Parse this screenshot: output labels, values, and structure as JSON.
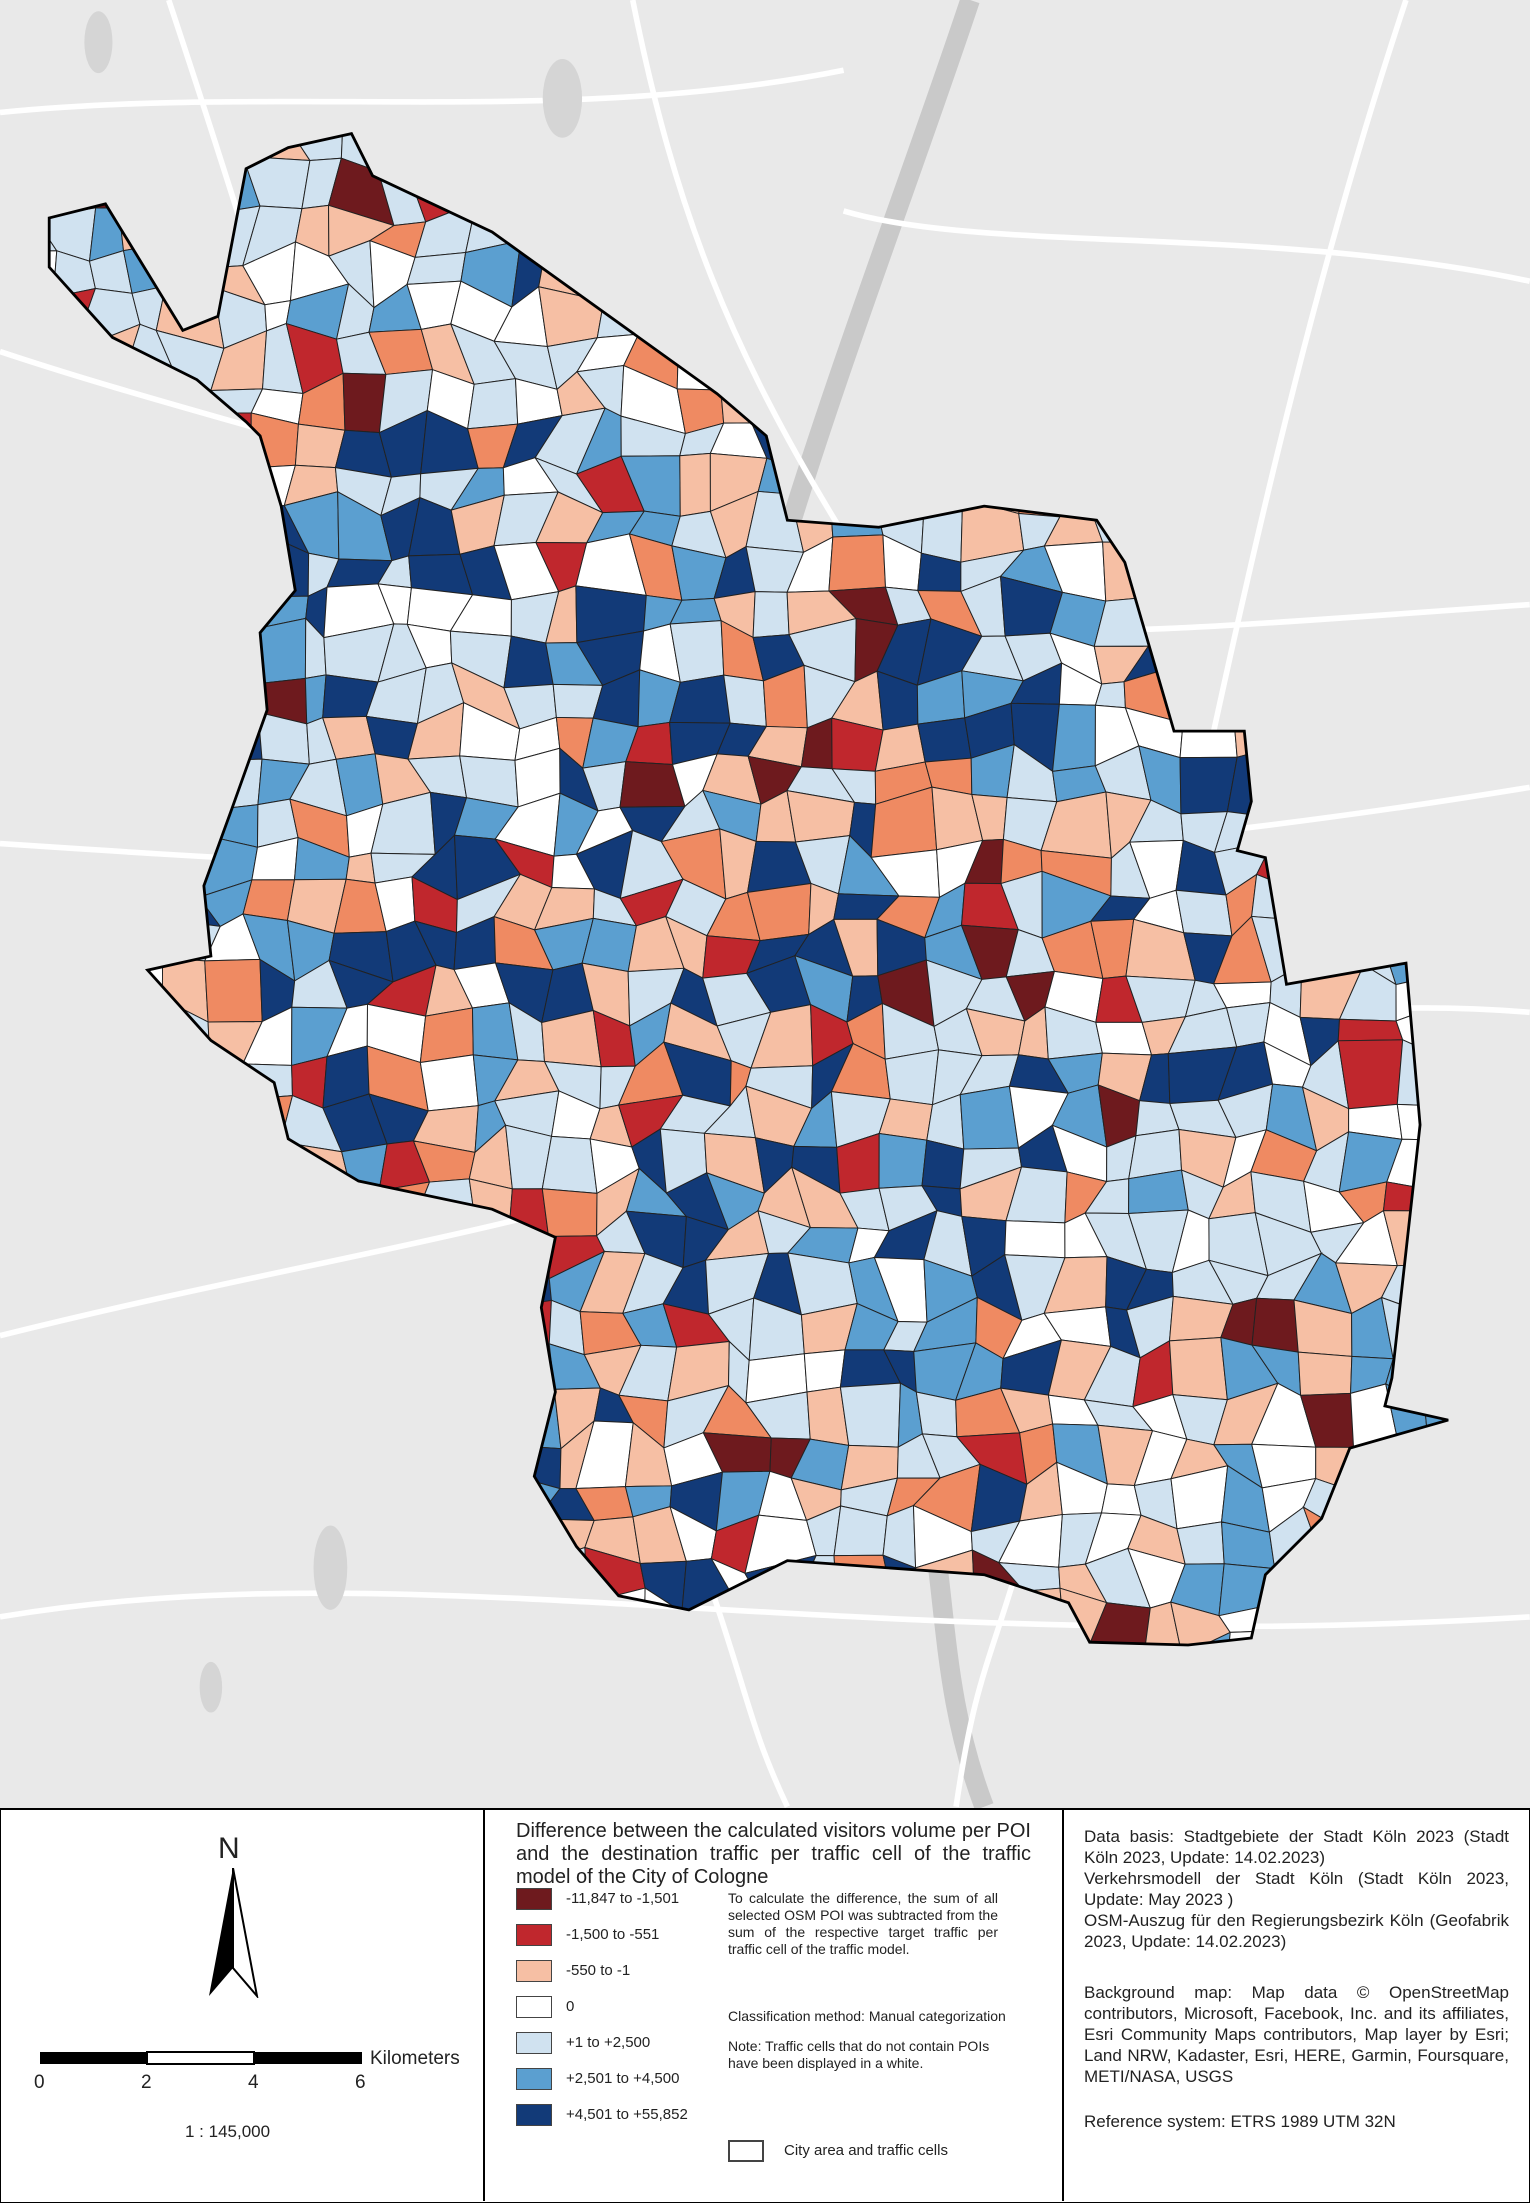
{
  "north_arrow": "N",
  "scale_bar": {
    "ticks": [
      "0",
      "2",
      "4",
      "6"
    ],
    "unit": "Kilometers",
    "ratio": "1 : 145,000"
  },
  "legend": {
    "title": "Difference between the calculated visitors volume per POI and the destination traffic per traffic cell of the traffic model of the City of Cologne",
    "classes": [
      {
        "label": "-11,847 to -1,501",
        "color": "#6e1a1e"
      },
      {
        "label": "-1,500 to -551",
        "color": "#c0272d"
      },
      {
        "label": "-550 to -1",
        "color": "#f6bfa4"
      },
      {
        "label": "0",
        "color": "#ffffff"
      },
      {
        "label": "+1 to +2,500",
        "color": "#d0e2f0"
      },
      {
        "label": "+2,501 to +4,500",
        "color": "#5b9fd0"
      },
      {
        "label": "+4,501 to +55,852",
        "color": "#123a78"
      }
    ],
    "outline_label": "City area and traffic cells",
    "method_note": "To calculate the difference, the sum of all selected OSM POI was subtracted from the sum of the respective target traffic per traffic cell of the traffic model.",
    "classification": "Classification method: Manual categorization",
    "white_note": "Note: Traffic cells that do not contain POIs have been displayed in a white."
  },
  "sources": {
    "data_basis": [
      "Data basis: Stadtgebiete der Stadt Köln 2023 (Stadt Köln 2023, Update: 14.02.2023)",
      "Verkehrsmodell der Stadt Köln (Stadt Köln 2023, Update: May 2023 )",
      "OSM-Auszug für den Regierungsbezirk Köln (Geofabrik 2023, Update: 14.02.2023)"
    ],
    "background": "Background map: Map data © OpenStreetMap contributors, Microsoft, Facebook, Inc. and its affiliates, Esri Community Maps contributors, Map layer by Esri; Land NRW, Kadaster, Esri, HERE, Garmin, Foursquare, METI/NASA, USGS",
    "reference": "Reference system: ETRS 1989 UTM 32N"
  }
}
